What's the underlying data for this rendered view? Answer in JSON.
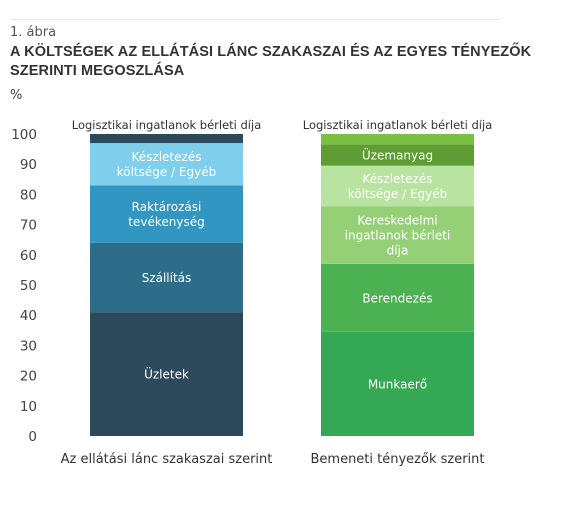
{
  "figure_label": "1. ábra",
  "title": "A KÖLTSÉGEK AZ ELLÁTÁSI LÁNC SZAKASZAI ÉS AZ EGYES TÉNYEZŐK SZERINTI MEGOSZLÁSA",
  "unit": "%",
  "chart_data": {
    "type": "bar",
    "stacked": true,
    "y_range": [
      0,
      100
    ],
    "y_ticks": [
      0,
      10,
      20,
      30,
      40,
      50,
      60,
      70,
      80,
      90,
      100
    ],
    "grid": false,
    "legend": "none",
    "bars": [
      {
        "category": "Az ellátási lánc szakaszai szerint",
        "top_label": "Logisztikai ingatlanok bérleti díja",
        "segments": [
          {
            "label": "Üzletek",
            "value": 41,
            "color": "#2c4a5b"
          },
          {
            "label": "Szállítás",
            "value": 23,
            "color": "#2e6d89"
          },
          {
            "label": "Raktározási tevékenység",
            "value": 19,
            "color": "#3196c1"
          },
          {
            "label": "Készletezés költsége / Egyéb",
            "value": 14,
            "color": "#7fcfec"
          },
          {
            "label": "Logisztikai ingatlanok bérleti díja",
            "value": 3,
            "color": "#2c4a5b"
          }
        ]
      },
      {
        "category": "Bemeneti tényezők szerint",
        "top_label": "Logisztikai ingatlanok bérleti díja",
        "segments": [
          {
            "label": "Munkaerő",
            "value": 34.5,
            "color": "#35a853"
          },
          {
            "label": "Berendezés",
            "value": 22.5,
            "color": "#4cb150"
          },
          {
            "label": "Kereskedelmi ingatlanok bérleti díja",
            "value": 19,
            "color": "#95d077"
          },
          {
            "label": "Készletezés költsége / Egyéb",
            "value": 13.5,
            "color": "#b9e3a0"
          },
          {
            "label": "Üzemanyag",
            "value": 7,
            "color": "#5d9d34"
          },
          {
            "label": "Logisztikai ingatlanok bérleti díja",
            "value": 3.5,
            "color": "#7cc042"
          }
        ]
      }
    ]
  }
}
